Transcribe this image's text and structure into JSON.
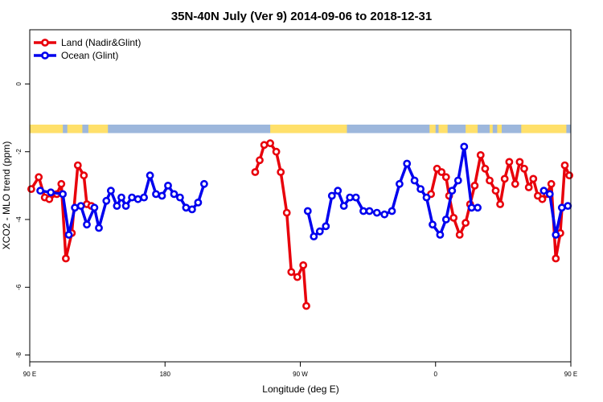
{
  "chart_data": {
    "type": "line",
    "title": "35N-40N July (Ver 9)   2014-09-06 to 2018-12-31",
    "xlabel": "Longitude (deg E)",
    "ylabel": "XCO2 - MLO trend (ppm)",
    "xlim": [
      90,
      450
    ],
    "ylim": [
      -8.2,
      1.6
    ],
    "x_ticks": [
      {
        "value": 90,
        "label": "90 E"
      },
      {
        "value": 180,
        "label": "180"
      },
      {
        "value": 270,
        "label": "90 W"
      },
      {
        "value": 360,
        "label": "0"
      },
      {
        "value": 450,
        "label": "90 E"
      },
      {
        "value": 540,
        "label": "180"
      }
    ],
    "y_ticks": [
      0,
      -2,
      -4,
      -6,
      -8
    ],
    "legend": {
      "position": "top-left"
    },
    "land_ocean_band": {
      "y_range": [
        -1.45,
        -1.2
      ],
      "land_color": "#FFE06A",
      "ocean_color": "#9DB7DC",
      "land_segments": [
        [
          90,
          112
        ],
        [
          115,
          125
        ],
        [
          129,
          142
        ],
        [
          250,
          301
        ],
        [
          356,
          360
        ],
        [
          362,
          368
        ],
        [
          380,
          388
        ],
        [
          396,
          398
        ],
        [
          401,
          404
        ],
        [
          417,
          447
        ]
      ]
    },
    "series": [
      {
        "name": "Land (Nadir&Glint)",
        "color": "#E8000B",
        "segments": [
          [
            [
              91,
              -3.1
            ],
            [
              96,
              -2.75
            ],
            [
              100,
              -3.35
            ],
            [
              103,
              -3.4
            ],
            [
              108,
              -3.25
            ],
            [
              111,
              -2.95
            ],
            [
              114,
              -5.15
            ],
            [
              118,
              -4.4
            ],
            [
              122,
              -2.4
            ],
            [
              126,
              -2.7
            ],
            [
              128,
              -3.55
            ],
            [
              131,
              -3.6
            ]
          ],
          [
            [
              240,
              -2.6
            ],
            [
              243,
              -2.25
            ],
            [
              246,
              -1.8
            ],
            [
              250,
              -1.75
            ],
            [
              254,
              -2.0
            ],
            [
              257,
              -2.6
            ],
            [
              261,
              -3.8
            ],
            [
              264,
              -5.55
            ],
            [
              268,
              -5.7
            ],
            [
              272,
              -5.35
            ],
            [
              274,
              -6.55
            ]
          ],
          [
            [
              357,
              -3.25
            ],
            [
              361,
              -2.5
            ],
            [
              364,
              -2.6
            ],
            [
              367,
              -2.75
            ],
            [
              369,
              -3.3
            ],
            [
              372,
              -3.95
            ],
            [
              376,
              -4.45
            ],
            [
              380,
              -4.1
            ],
            [
              383,
              -3.55
            ],
            [
              386,
              -3.0
            ],
            [
              390,
              -2.1
            ],
            [
              393,
              -2.5
            ],
            [
              396,
              -2.85
            ],
            [
              400,
              -3.15
            ],
            [
              403,
              -3.55
            ],
            [
              406,
              -2.8
            ],
            [
              409,
              -2.3
            ],
            [
              413,
              -2.95
            ],
            [
              416,
              -2.3
            ],
            [
              419,
              -2.5
            ],
            [
              422,
              -3.05
            ],
            [
              425,
              -2.8
            ],
            [
              428,
              -3.3
            ],
            [
              431,
              -3.4
            ],
            [
              434,
              -3.25
            ],
            [
              437,
              -2.95
            ],
            [
              440,
              -5.15
            ],
            [
              443,
              -4.4
            ],
            [
              446,
              -2.4
            ],
            [
              449,
              -2.7
            ],
            [
              451,
              -3.55
            ],
            [
              452,
              -3.6
            ]
          ]
        ]
      },
      {
        "name": "Ocean (Glint)",
        "color": "#0000EE",
        "segments": [
          [
            [
              97,
              -3.15
            ],
            [
              104,
              -3.2
            ],
            [
              112,
              -3.25
            ],
            [
              116,
              -4.45
            ],
            [
              120,
              -3.65
            ],
            [
              124,
              -3.6
            ],
            [
              128,
              -4.15
            ],
            [
              133,
              -3.65
            ],
            [
              136,
              -4.25
            ],
            [
              141,
              -3.45
            ],
            [
              144,
              -3.15
            ],
            [
              148,
              -3.6
            ],
            [
              151,
              -3.35
            ],
            [
              154,
              -3.6
            ],
            [
              158,
              -3.35
            ],
            [
              162,
              -3.4
            ],
            [
              166,
              -3.35
            ],
            [
              170,
              -2.7
            ],
            [
              174,
              -3.25
            ],
            [
              178,
              -3.3
            ],
            [
              182,
              -3.0
            ],
            [
              186,
              -3.25
            ],
            [
              190,
              -3.35
            ],
            [
              194,
              -3.65
            ],
            [
              198,
              -3.7
            ],
            [
              202,
              -3.5
            ],
            [
              206,
              -2.95
            ]
          ],
          [
            [
              275,
              -3.75
            ],
            [
              279,
              -4.5
            ],
            [
              283,
              -4.35
            ],
            [
              287,
              -4.2
            ],
            [
              291,
              -3.3
            ],
            [
              295,
              -3.15
            ],
            [
              299,
              -3.6
            ],
            [
              303,
              -3.35
            ],
            [
              307,
              -3.35
            ],
            [
              312,
              -3.75
            ],
            [
              316,
              -3.75
            ],
            [
              321,
              -3.8
            ],
            [
              326,
              -3.85
            ],
            [
              331,
              -3.75
            ],
            [
              336,
              -2.95
            ],
            [
              341,
              -2.35
            ],
            [
              346,
              -2.85
            ],
            [
              350,
              -3.1
            ],
            [
              354,
              -3.35
            ],
            [
              358,
              -4.15
            ],
            [
              363,
              -4.45
            ],
            [
              367,
              -4.0
            ],
            [
              371,
              -3.15
            ],
            [
              375,
              -2.85
            ],
            [
              379,
              -1.85
            ],
            [
              384,
              -3.65
            ],
            [
              388,
              -3.65
            ]
          ],
          [
            [
              432,
              -3.15
            ],
            [
              436,
              -3.25
            ],
            [
              440,
              -4.45
            ],
            [
              444,
              -3.65
            ],
            [
              448,
              -3.6
            ],
            [
              452,
              -4.15
            ]
          ]
        ]
      }
    ]
  }
}
